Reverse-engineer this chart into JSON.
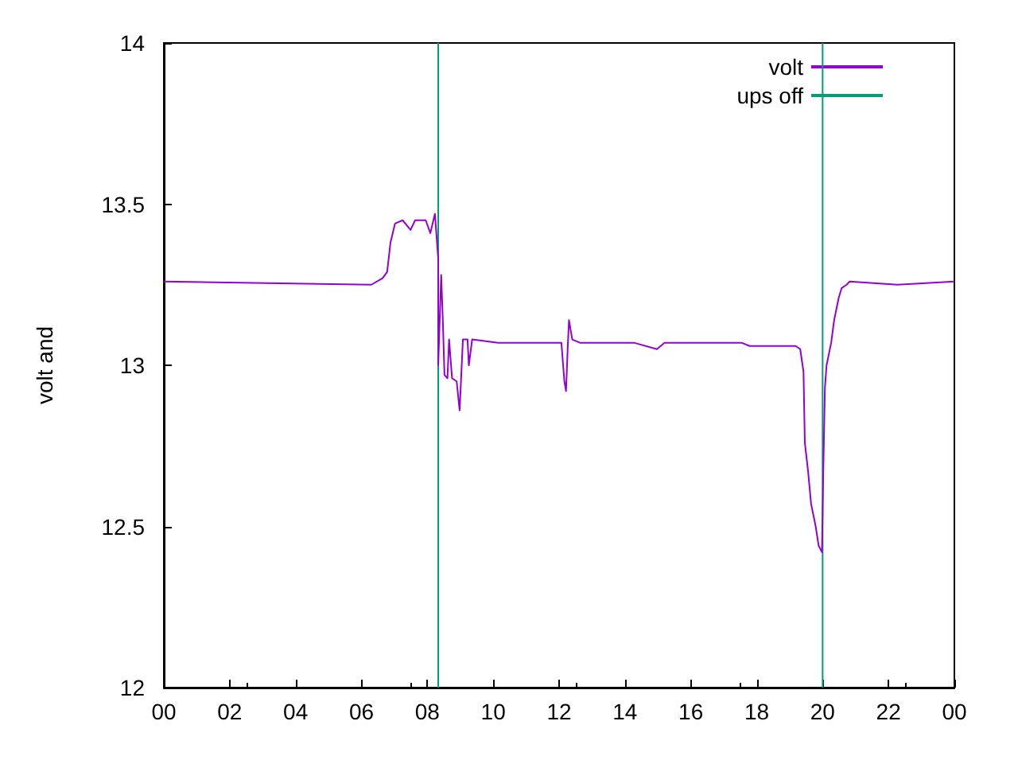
{
  "chart_data": {
    "type": "line",
    "ylabel": "volt and",
    "xlim": [
      0,
      24
    ],
    "xticks": [
      {
        "value": 0,
        "label": "00"
      },
      {
        "value": 2,
        "label": "02"
      },
      {
        "value": 4,
        "label": "04"
      },
      {
        "value": 6,
        "label": "06"
      },
      {
        "value": 8,
        "label": "08"
      },
      {
        "value": 10,
        "label": "10"
      },
      {
        "value": 12,
        "label": "12"
      },
      {
        "value": 14,
        "label": "14"
      },
      {
        "value": 16,
        "label": "16"
      },
      {
        "value": 18,
        "label": "18"
      },
      {
        "value": 20,
        "label": "20"
      },
      {
        "value": 22,
        "label": "22"
      },
      {
        "value": 24,
        "label": "00"
      }
    ],
    "ylim": [
      12,
      14
    ],
    "yticks": [
      12,
      12.5,
      13,
      13.5,
      14
    ],
    "grid": false,
    "legend": "top right",
    "marker": "none",
    "line_style": "solid",
    "series": [
      {
        "name": "volt",
        "color": "#9400d3",
        "x": [
          0,
          6.3,
          6.64,
          6.78,
          6.88,
          7.02,
          7.25,
          7.49,
          7.63,
          7.95,
          8.09,
          8.23,
          8.33,
          8.33,
          8.42,
          8.47,
          8.52,
          8.61,
          8.66,
          8.75,
          8.89,
          8.98,
          9.08,
          9.22,
          9.26,
          9.36,
          10.15,
          11.46,
          12.07,
          12.16,
          12.21,
          12.26,
          12.3,
          12.4,
          12.63,
          14.27,
          14.97,
          15.2,
          17.54,
          17.78,
          19.18,
          19.32,
          19.42,
          19.46,
          19.56,
          19.65,
          19.79,
          19.88,
          19.98,
          20.02,
          20.07,
          20.12,
          20.26,
          20.35,
          20.49,
          20.58,
          20.73,
          20.82,
          22.27,
          24
        ],
        "values": [
          13.26,
          13.25,
          13.27,
          13.29,
          13.38,
          13.44,
          13.45,
          13.42,
          13.45,
          13.45,
          13.41,
          13.47,
          13.33,
          13.0,
          13.28,
          13.14,
          12.97,
          12.96,
          13.08,
          12.96,
          12.95,
          12.86,
          13.08,
          13.08,
          13.0,
          13.08,
          13.07,
          13.07,
          13.07,
          12.95,
          12.92,
          13.05,
          13.14,
          13.08,
          13.07,
          13.07,
          13.05,
          13.07,
          13.07,
          13.06,
          13.06,
          13.05,
          12.98,
          12.76,
          12.67,
          12.57,
          12.5,
          12.44,
          12.42,
          12.67,
          12.93,
          13.0,
          13.07,
          13.14,
          13.21,
          13.24,
          13.25,
          13.26,
          13.25,
          13.26
        ]
      },
      {
        "name": "ups off",
        "color": "#009e73",
        "x": [
          8.33,
          8.33,
          14,
          20,
          20
        ],
        "values": [
          12,
          14,
          null,
          14,
          12
        ]
      }
    ]
  }
}
